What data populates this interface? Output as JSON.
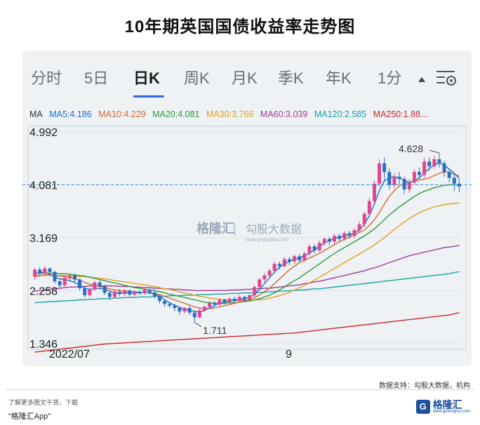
{
  "title": "10年期英国国债收益率走势图",
  "tabs": [
    {
      "label": "分时",
      "active": false
    },
    {
      "label": "5日",
      "active": false
    },
    {
      "label": "日K",
      "active": true
    },
    {
      "label": "周K",
      "active": false
    },
    {
      "label": "月K",
      "active": false
    },
    {
      "label": "季K",
      "active": false
    },
    {
      "label": "年K",
      "active": false
    },
    {
      "label": "1分",
      "active": false
    }
  ],
  "settings_icon": "settings-icon",
  "ma_legend": [
    {
      "label": "MA",
      "color": "#333333"
    },
    {
      "label": "MA5:4.186",
      "color": "#1f6fd6"
    },
    {
      "label": "MA10:4.229",
      "color": "#d4692b"
    },
    {
      "label": "MA20:4.081",
      "color": "#2e9a3a"
    },
    {
      "label": "MA30:3.766",
      "color": "#e0a020"
    },
    {
      "label": "MA60:3.039",
      "color": "#a23a9a"
    },
    {
      "label": "MA120:2.585",
      "color": "#17a1a8"
    },
    {
      "label": "MA250:1.88...",
      "color": "#c8282e"
    }
  ],
  "watermark": {
    "brand": "格隆汇",
    "sep": "|",
    "text": "勾股大数据",
    "url": "www.gogudata.com"
  },
  "footer": {
    "source": "数据支持：勾股大数据，机构",
    "note": "了解更多图文干货，下载",
    "app": "“格隆汇App”",
    "logo": "格隆汇",
    "logo_url": "www.gelonghui.com"
  },
  "chart_data": {
    "type": "line",
    "y_ticks": [
      "4.992",
      "4.081",
      "3.169",
      "2.258",
      "1.346"
    ],
    "ylim": [
      1.346,
      4.992
    ],
    "x_ticks": [
      "2022/07",
      "9"
    ],
    "current_price_line": 4.081,
    "annotations": [
      {
        "label": "4.628",
        "value": 4.628
      },
      {
        "label": "1.711",
        "value": 1.711
      }
    ],
    "colors": {
      "up": "#e0468c",
      "down": "#2a6fc0",
      "dashed": "#3a8ed6"
    },
    "candles": [
      [
        2.5,
        2.62,
        2.45,
        2.65
      ],
      [
        2.62,
        2.55,
        2.5,
        2.66
      ],
      [
        2.55,
        2.64,
        2.52,
        2.68
      ],
      [
        2.64,
        2.58,
        2.55,
        2.66
      ],
      [
        2.58,
        2.42,
        2.38,
        2.6
      ],
      [
        2.42,
        2.35,
        2.3,
        2.46
      ],
      [
        2.35,
        2.48,
        2.33,
        2.52
      ],
      [
        2.48,
        2.52,
        2.44,
        2.56
      ],
      [
        2.52,
        2.45,
        2.4,
        2.55
      ],
      [
        2.45,
        2.3,
        2.26,
        2.47
      ],
      [
        2.3,
        2.18,
        2.14,
        2.33
      ],
      [
        2.18,
        2.28,
        2.15,
        2.3
      ],
      [
        2.28,
        2.4,
        2.25,
        2.42
      ],
      [
        2.4,
        2.33,
        2.28,
        2.44
      ],
      [
        2.33,
        2.22,
        2.18,
        2.36
      ],
      [
        2.22,
        2.15,
        2.1,
        2.25
      ],
      [
        2.15,
        2.24,
        2.12,
        2.26
      ],
      [
        2.24,
        2.2,
        2.16,
        2.28
      ],
      [
        2.2,
        2.26,
        2.17,
        2.29
      ],
      [
        2.26,
        2.19,
        2.15,
        2.28
      ],
      [
        2.19,
        2.24,
        2.16,
        2.26
      ],
      [
        2.24,
        2.21,
        2.18,
        2.27
      ],
      [
        2.21,
        2.27,
        2.19,
        2.3
      ],
      [
        2.27,
        2.23,
        2.19,
        2.29
      ],
      [
        2.23,
        2.16,
        2.12,
        2.25
      ],
      [
        2.16,
        2.08,
        2.04,
        2.18
      ],
      [
        2.08,
        2.03,
        1.98,
        2.1
      ],
      [
        2.03,
        2.0,
        1.96,
        2.06
      ],
      [
        2.0,
        1.96,
        1.9,
        2.03
      ],
      [
        1.96,
        1.9,
        1.84,
        1.99
      ],
      [
        1.9,
        1.96,
        1.86,
        1.98
      ],
      [
        1.96,
        1.88,
        1.84,
        1.99
      ],
      [
        1.88,
        1.8,
        1.71,
        1.92
      ],
      [
        1.8,
        1.92,
        1.78,
        1.95
      ],
      [
        1.92,
        1.98,
        1.89,
        2.01
      ],
      [
        1.98,
        2.05,
        1.95,
        2.08
      ],
      [
        2.05,
        2.02,
        1.98,
        2.08
      ],
      [
        2.02,
        2.1,
        2.0,
        2.13
      ],
      [
        2.1,
        2.06,
        2.02,
        2.12
      ],
      [
        2.06,
        2.12,
        2.03,
        2.15
      ],
      [
        2.12,
        2.08,
        2.04,
        2.15
      ],
      [
        2.08,
        2.15,
        2.05,
        2.18
      ],
      [
        2.15,
        2.1,
        2.06,
        2.17
      ],
      [
        2.1,
        2.18,
        2.08,
        2.2
      ],
      [
        2.18,
        2.32,
        2.15,
        2.35
      ],
      [
        2.32,
        2.45,
        2.28,
        2.48
      ],
      [
        2.45,
        2.52,
        2.4,
        2.56
      ],
      [
        2.52,
        2.6,
        2.48,
        2.64
      ],
      [
        2.6,
        2.72,
        2.55,
        2.76
      ],
      [
        2.72,
        2.68,
        2.62,
        2.76
      ],
      [
        2.68,
        2.8,
        2.65,
        2.84
      ],
      [
        2.8,
        2.76,
        2.7,
        2.84
      ],
      [
        2.76,
        2.85,
        2.72,
        2.88
      ],
      [
        2.85,
        2.78,
        2.74,
        2.89
      ],
      [
        2.78,
        2.9,
        2.75,
        2.93
      ],
      [
        2.9,
        3.02,
        2.86,
        3.06
      ],
      [
        3.02,
        2.95,
        2.9,
        3.06
      ],
      [
        2.95,
        3.08,
        2.92,
        3.12
      ],
      [
        3.08,
        3.15,
        3.03,
        3.18
      ],
      [
        3.15,
        3.1,
        3.04,
        3.19
      ],
      [
        3.1,
        3.2,
        3.06,
        3.24
      ],
      [
        3.2,
        3.15,
        3.1,
        3.24
      ],
      [
        3.15,
        3.25,
        3.12,
        3.28
      ],
      [
        3.25,
        3.2,
        3.15,
        3.29
      ],
      [
        3.2,
        3.3,
        3.16,
        3.33
      ],
      [
        3.3,
        3.4,
        3.25,
        3.45
      ],
      [
        3.4,
        3.58,
        3.36,
        3.62
      ],
      [
        3.58,
        3.8,
        3.52,
        3.86
      ],
      [
        3.8,
        4.1,
        3.76,
        4.16
      ],
      [
        4.1,
        4.45,
        4.05,
        4.52
      ],
      [
        4.45,
        4.3,
        4.12,
        4.55
      ],
      [
        4.3,
        4.08,
        4.0,
        4.36
      ],
      [
        4.08,
        4.22,
        4.02,
        4.28
      ],
      [
        4.22,
        4.18,
        4.08,
        4.3
      ],
      [
        4.18,
        4.0,
        3.92,
        4.22
      ],
      [
        4.0,
        4.12,
        3.94,
        4.18
      ],
      [
        4.12,
        4.3,
        4.08,
        4.35
      ],
      [
        4.3,
        4.25,
        4.18,
        4.38
      ],
      [
        4.25,
        4.48,
        4.2,
        4.54
      ],
      [
        4.48,
        4.4,
        4.32,
        4.55
      ],
      [
        4.4,
        4.52,
        4.36,
        4.58
      ],
      [
        4.52,
        4.45,
        4.38,
        4.628
      ],
      [
        4.45,
        4.3,
        4.22,
        4.5
      ],
      [
        4.3,
        4.2,
        4.12,
        4.36
      ],
      [
        4.2,
        4.1,
        3.98,
        4.26
      ],
      [
        4.1,
        4.05,
        3.95,
        4.18
      ]
    ],
    "ma_series": {
      "MA5": [
        2.55,
        2.57,
        2.58,
        2.54,
        2.5,
        2.46,
        2.45,
        2.43,
        2.4,
        2.35,
        2.3,
        2.28,
        2.29,
        2.3,
        2.28,
        2.25,
        2.22,
        2.21,
        2.22,
        2.22,
        2.22,
        2.23,
        2.23,
        2.22,
        2.2,
        2.16,
        2.1,
        2.05,
        2.01,
        1.97,
        1.94,
        1.92,
        1.9,
        1.89,
        1.92,
        1.96,
        2.0,
        2.04,
        2.06,
        2.08,
        2.09,
        2.1,
        2.12,
        2.14,
        2.2,
        2.28,
        2.38,
        2.48,
        2.58,
        2.66,
        2.72,
        2.76,
        2.8,
        2.82,
        2.86,
        2.9,
        2.96,
        3.02,
        3.08,
        3.12,
        3.16,
        3.18,
        3.2,
        3.22,
        3.25,
        3.3,
        3.4,
        3.55,
        3.75,
        3.98,
        4.15,
        4.2,
        4.22,
        4.2,
        4.16,
        4.12,
        4.15,
        4.2,
        4.28,
        4.36,
        4.42,
        4.46,
        4.42,
        4.35,
        4.28,
        4.19
      ],
      "MA10": [
        2.5,
        2.52,
        2.53,
        2.53,
        2.52,
        2.51,
        2.5,
        2.48,
        2.46,
        2.44,
        2.4,
        2.37,
        2.35,
        2.33,
        2.31,
        2.29,
        2.27,
        2.26,
        2.25,
        2.25,
        2.24,
        2.23,
        2.23,
        2.22,
        2.21,
        2.19,
        2.16,
        2.13,
        2.1,
        2.07,
        2.04,
        2.01,
        1.98,
        1.96,
        1.95,
        1.95,
        1.96,
        1.98,
        2.0,
        2.02,
        2.04,
        2.06,
        2.08,
        2.1,
        2.14,
        2.18,
        2.24,
        2.3,
        2.38,
        2.46,
        2.54,
        2.62,
        2.68,
        2.74,
        2.78,
        2.82,
        2.86,
        2.9,
        2.95,
        3.0,
        3.05,
        3.1,
        3.14,
        3.18,
        3.22,
        3.26,
        3.3,
        3.38,
        3.48,
        3.6,
        3.75,
        3.88,
        3.98,
        4.06,
        4.1,
        4.12,
        4.14,
        4.16,
        4.18,
        4.2,
        4.24,
        4.28,
        4.3,
        4.3,
        4.26,
        4.23
      ],
      "MA20": [
        2.55,
        2.56,
        2.56,
        2.56,
        2.56,
        2.55,
        2.55,
        2.54,
        2.53,
        2.52,
        2.51,
        2.49,
        2.47,
        2.45,
        2.43,
        2.41,
        2.39,
        2.37,
        2.35,
        2.33,
        2.31,
        2.3,
        2.28,
        2.27,
        2.26,
        2.24,
        2.22,
        2.2,
        2.18,
        2.16,
        2.14,
        2.12,
        2.1,
        2.08,
        2.06,
        2.05,
        2.04,
        2.04,
        2.04,
        2.05,
        2.05,
        2.06,
        2.07,
        2.08,
        2.1,
        2.12,
        2.15,
        2.18,
        2.22,
        2.27,
        2.32,
        2.38,
        2.43,
        2.48,
        2.54,
        2.6,
        2.66,
        2.72,
        2.78,
        2.84,
        2.9,
        2.95,
        3.0,
        3.05,
        3.1,
        3.15,
        3.2,
        3.26,
        3.32,
        3.4,
        3.48,
        3.56,
        3.63,
        3.7,
        3.76,
        3.82,
        3.88,
        3.93,
        3.97,
        4.0,
        4.03,
        4.05,
        4.07,
        4.08,
        4.08,
        4.081
      ],
      "MA30": [
        2.52,
        2.52,
        2.52,
        2.52,
        2.52,
        2.52,
        2.52,
        2.51,
        2.51,
        2.5,
        2.5,
        2.49,
        2.48,
        2.47,
        2.46,
        2.45,
        2.43,
        2.42,
        2.41,
        2.4,
        2.38,
        2.37,
        2.36,
        2.34,
        2.33,
        2.31,
        2.29,
        2.28,
        2.26,
        2.24,
        2.22,
        2.2,
        2.18,
        2.16,
        2.15,
        2.13,
        2.12,
        2.11,
        2.1,
        2.1,
        2.09,
        2.09,
        2.09,
        2.09,
        2.1,
        2.1,
        2.11,
        2.13,
        2.15,
        2.17,
        2.2,
        2.23,
        2.27,
        2.31,
        2.35,
        2.39,
        2.44,
        2.49,
        2.54,
        2.59,
        2.64,
        2.69,
        2.74,
        2.79,
        2.84,
        2.89,
        2.94,
        2.99,
        3.05,
        3.11,
        3.17,
        3.24,
        3.31,
        3.38,
        3.44,
        3.5,
        3.55,
        3.6,
        3.64,
        3.67,
        3.7,
        3.72,
        3.74,
        3.75,
        3.76,
        3.766
      ],
      "MA60": [
        2.25,
        2.26,
        2.27,
        2.28,
        2.29,
        2.3,
        2.31,
        2.32,
        2.32,
        2.33,
        2.33,
        2.34,
        2.34,
        2.34,
        2.34,
        2.34,
        2.34,
        2.33,
        2.33,
        2.33,
        2.32,
        2.32,
        2.31,
        2.31,
        2.3,
        2.3,
        2.29,
        2.29,
        2.28,
        2.28,
        2.27,
        2.27,
        2.26,
        2.26,
        2.26,
        2.26,
        2.26,
        2.26,
        2.26,
        2.27,
        2.27,
        2.27,
        2.28,
        2.28,
        2.29,
        2.29,
        2.3,
        2.3,
        2.31,
        2.32,
        2.33,
        2.34,
        2.35,
        2.36,
        2.38,
        2.39,
        2.41,
        2.42,
        2.44,
        2.46,
        2.48,
        2.5,
        2.52,
        2.54,
        2.56,
        2.58,
        2.6,
        2.63,
        2.65,
        2.68,
        2.71,
        2.74,
        2.77,
        2.8,
        2.83,
        2.86,
        2.88,
        2.9,
        2.92,
        2.94,
        2.96,
        2.98,
        3.0,
        3.01,
        3.02,
        3.039
      ],
      "MA120": [
        2.05,
        2.06,
        2.06,
        2.07,
        2.07,
        2.08,
        2.08,
        2.09,
        2.09,
        2.1,
        2.1,
        2.11,
        2.11,
        2.12,
        2.12,
        2.12,
        2.13,
        2.13,
        2.14,
        2.14,
        2.14,
        2.15,
        2.15,
        2.15,
        2.16,
        2.16,
        2.16,
        2.17,
        2.17,
        2.17,
        2.18,
        2.18,
        2.18,
        2.19,
        2.19,
        2.19,
        2.2,
        2.2,
        2.2,
        2.21,
        2.21,
        2.21,
        2.22,
        2.22,
        2.22,
        2.23,
        2.23,
        2.24,
        2.24,
        2.25,
        2.25,
        2.26,
        2.26,
        2.27,
        2.27,
        2.28,
        2.29,
        2.29,
        2.3,
        2.31,
        2.32,
        2.33,
        2.34,
        2.35,
        2.36,
        2.37,
        2.38,
        2.39,
        2.4,
        2.41,
        2.42,
        2.43,
        2.44,
        2.45,
        2.46,
        2.47,
        2.48,
        2.49,
        2.5,
        2.51,
        2.52,
        2.53,
        2.54,
        2.55,
        2.57,
        2.585
      ],
      "MA250": [
        1.2,
        1.21,
        1.22,
        1.23,
        1.24,
        1.25,
        1.26,
        1.27,
        1.28,
        1.29,
        1.3,
        1.31,
        1.32,
        1.33,
        1.34,
        1.345,
        1.35,
        1.355,
        1.36,
        1.365,
        1.37,
        1.375,
        1.38,
        1.385,
        1.39,
        1.395,
        1.4,
        1.405,
        1.41,
        1.415,
        1.42,
        1.425,
        1.43,
        1.435,
        1.44,
        1.445,
        1.45,
        1.455,
        1.46,
        1.465,
        1.47,
        1.475,
        1.48,
        1.485,
        1.49,
        1.495,
        1.5,
        1.505,
        1.51,
        1.515,
        1.52,
        1.525,
        1.53,
        1.54,
        1.55,
        1.56,
        1.57,
        1.58,
        1.59,
        1.6,
        1.61,
        1.62,
        1.63,
        1.64,
        1.65,
        1.66,
        1.67,
        1.68,
        1.69,
        1.7,
        1.71,
        1.72,
        1.73,
        1.74,
        1.75,
        1.76,
        1.77,
        1.78,
        1.79,
        1.8,
        1.81,
        1.82,
        1.83,
        1.84,
        1.86,
        1.88
      ]
    }
  }
}
